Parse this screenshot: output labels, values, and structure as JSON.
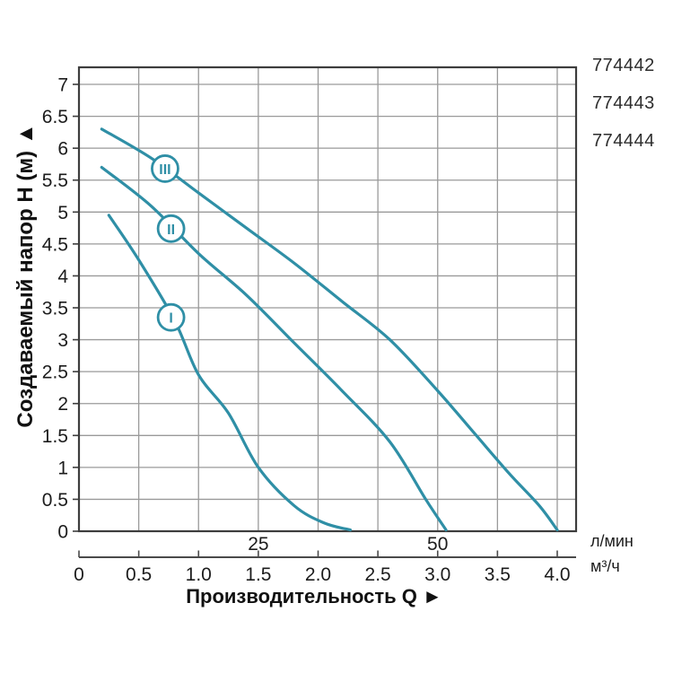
{
  "legend": {
    "codes": [
      "774442",
      "774443",
      "774444"
    ]
  },
  "chart_data": {
    "type": "line",
    "title": "",
    "y_axis": {
      "title": "Создаваемый напор H (м) ▲",
      "label": "Создаваемый напор H (м)",
      "ticks": [
        "0",
        "0.5",
        "1",
        "1.5",
        "2",
        "2.5",
        "3",
        "3.5",
        "4",
        "4.5",
        "5",
        "5.5",
        "6",
        "6.5",
        "7"
      ],
      "range": [
        0,
        7.3
      ],
      "grid": true
    },
    "x_axis": {
      "title": "Производительность Q ►",
      "label": "Производительность Q",
      "unit_primary": "л/мин",
      "unit_secondary": "м³/ч",
      "ticks_lmin": [
        "25",
        "50"
      ],
      "ticks_m3h": [
        "0",
        "0.5",
        "1.0",
        "1.5",
        "2.0",
        "2.5",
        "3.0",
        "3.5",
        "4.0"
      ],
      "range_m3h": [
        0,
        4.16
      ],
      "lmin_per_m3h": 16.667,
      "grid": true
    },
    "series": [
      {
        "name": "III",
        "label_at": {
          "q": 0.72,
          "h": 5.68
        },
        "points_m3h_h": [
          [
            0.19,
            6.3
          ],
          [
            0.6,
            5.85
          ],
          [
            1.0,
            5.3
          ],
          [
            1.4,
            4.75
          ],
          [
            1.8,
            4.2
          ],
          [
            2.2,
            3.6
          ],
          [
            2.6,
            3.0
          ],
          [
            3.0,
            2.2
          ],
          [
            3.3,
            1.55
          ],
          [
            3.6,
            0.9
          ],
          [
            3.85,
            0.4
          ],
          [
            4.0,
            0.02
          ]
        ]
      },
      {
        "name": "II",
        "label_at": {
          "q": 0.77,
          "h": 4.74
        },
        "points_m3h_h": [
          [
            0.19,
            5.7
          ],
          [
            0.6,
            5.1
          ],
          [
            1.0,
            4.35
          ],
          [
            1.4,
            3.7
          ],
          [
            1.8,
            2.95
          ],
          [
            2.2,
            2.2
          ],
          [
            2.6,
            1.4
          ],
          [
            2.9,
            0.5
          ],
          [
            3.07,
            0.02
          ]
        ]
      },
      {
        "name": "I",
        "label_at": {
          "q": 0.77,
          "h": 3.35
        },
        "points_m3h_h": [
          [
            0.25,
            4.95
          ],
          [
            0.5,
            4.25
          ],
          [
            0.8,
            3.3
          ],
          [
            1.0,
            2.45
          ],
          [
            1.25,
            1.85
          ],
          [
            1.5,
            1.0
          ],
          [
            1.8,
            0.4
          ],
          [
            2.05,
            0.13
          ],
          [
            2.27,
            0.02
          ]
        ]
      }
    ],
    "colors": {
      "curve": "#2f8fa6",
      "grid": "#9a9a9a",
      "border": "#3d3d3d",
      "axis2": "#4a4a4a",
      "text": "#1c1c1c"
    }
  }
}
